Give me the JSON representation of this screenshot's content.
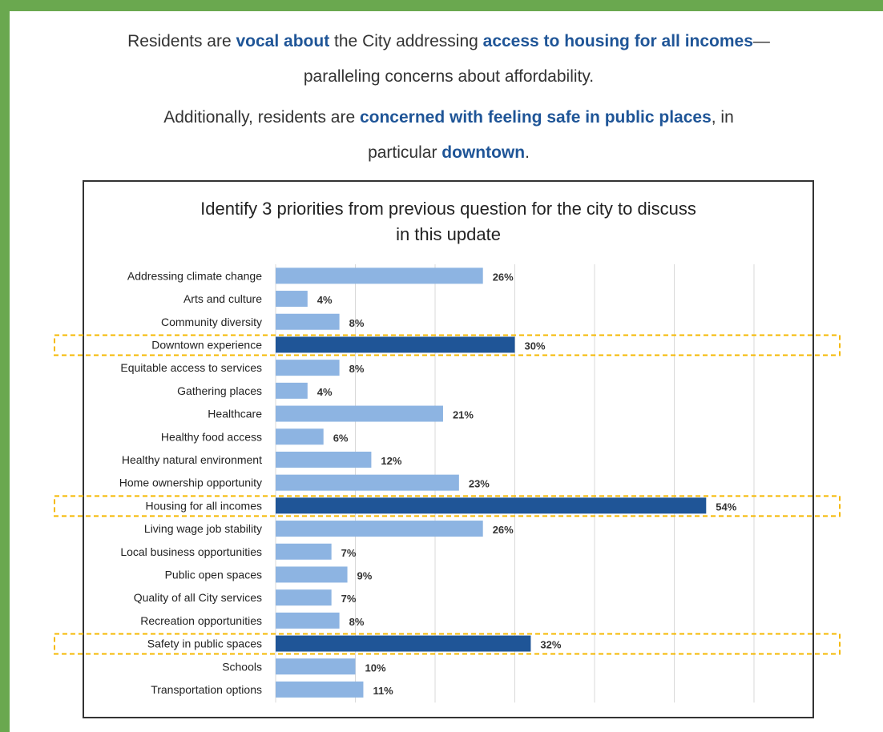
{
  "intro": {
    "line1_a": "Residents are ",
    "line1_b": "vocal about",
    "line1_c": " the City addressing ",
    "line1_d": "access to housing for all incomes",
    "line1_e": "—",
    "line1_f": "paralleling concerns about affordability.",
    "line2_a": "Additionally, residents are ",
    "line2_b": "concerned with feeling safe in public places",
    "line2_c": ", in",
    "line2_d": "particular ",
    "line2_e": "downtown",
    "line2_f": "."
  },
  "colors": {
    "frame": "#6aa84f",
    "bar_normal": "#8db4e2",
    "bar_highlight": "#1f5597",
    "highlight_outline": "#f5b800",
    "text_highlight": "#1f5597"
  },
  "chart_data": {
    "type": "bar",
    "orientation": "horizontal",
    "title_line1": "Identify 3 priorities from previous question for the city to discuss",
    "title_line2": "in this update",
    "xlim": [
      0,
      65
    ],
    "grid": true,
    "categories": [
      "Addressing climate change",
      "Arts and culture",
      "Community diversity",
      "Downtown experience",
      "Equitable access to services",
      "Gathering places",
      "Healthcare",
      "Healthy food access",
      "Healthy natural environment",
      "Home ownership opportunity",
      "Housing for all incomes",
      "Living wage job stability",
      "Local business opportunities",
      "Public open spaces",
      "Quality of all City services",
      "Recreation opportunities",
      "Safety in public spaces",
      "Schools",
      "Transportation options"
    ],
    "values": [
      26,
      4,
      8,
      30,
      8,
      4,
      21,
      6,
      12,
      23,
      54,
      26,
      7,
      9,
      7,
      8,
      32,
      10,
      11
    ],
    "value_labels": [
      "26%",
      "4%",
      "8%",
      "30%",
      "8%",
      "4%",
      "21%",
      "6%",
      "12%",
      "23%",
      "54%",
      "26%",
      "7%",
      "9%",
      "7%",
      "8%",
      "32%",
      "10%",
      "11%"
    ],
    "highlighted": [
      "Downtown experience",
      "Housing for all incomes",
      "Safety in public spaces"
    ]
  }
}
